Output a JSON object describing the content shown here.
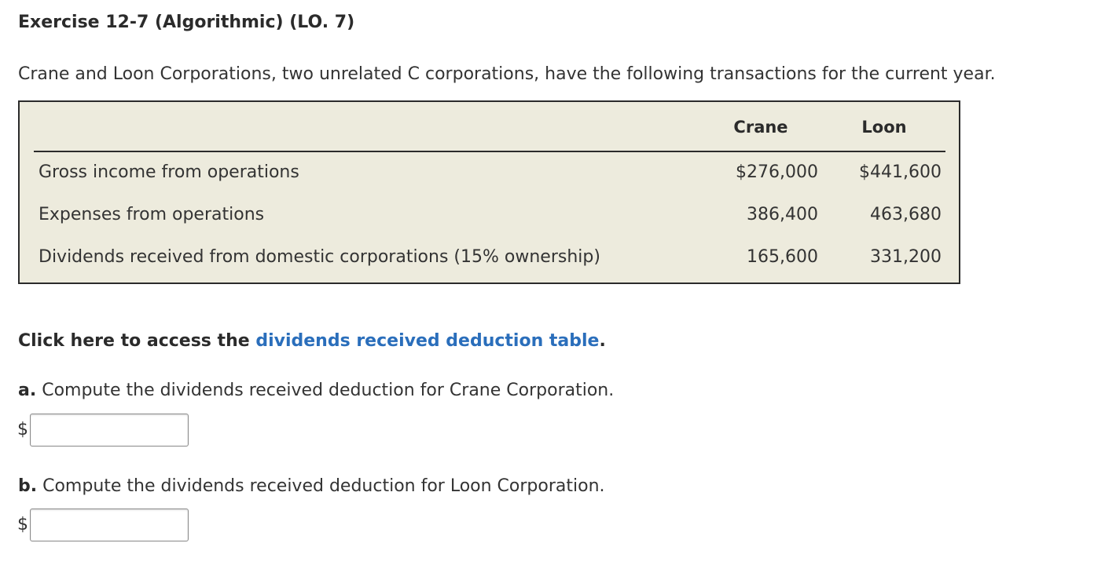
{
  "exercise": {
    "title": "Exercise 12-7 (Algorithmic) (LO. 7)",
    "intro": "Crane and Loon Corporations, two unrelated C corporations, have the following transactions for the current year."
  },
  "table": {
    "columns": [
      "Crane",
      "Loon"
    ],
    "rows": [
      {
        "label": "Gross income from operations",
        "crane": "$276,000",
        "loon": "$441,600"
      },
      {
        "label": "Expenses from operations",
        "crane": "386,400",
        "loon": "463,680"
      },
      {
        "label": "Dividends received from domestic corporations (15% ownership)",
        "crane": "165,600",
        "loon": "331,200"
      }
    ]
  },
  "reference": {
    "prefix": "Click here to access the ",
    "link_text": "dividends received deduction table",
    "suffix": "."
  },
  "questions": [
    {
      "letter": "a.",
      "text": "Compute the dividends received deduction for Crane Corporation.",
      "currency": "$",
      "value": ""
    },
    {
      "letter": "b.",
      "text": "Compute the dividends received deduction for Loon Corporation.",
      "currency": "$",
      "value": ""
    }
  ],
  "colors": {
    "table_background": "#edebdd",
    "link": "#2a6ebb"
  }
}
